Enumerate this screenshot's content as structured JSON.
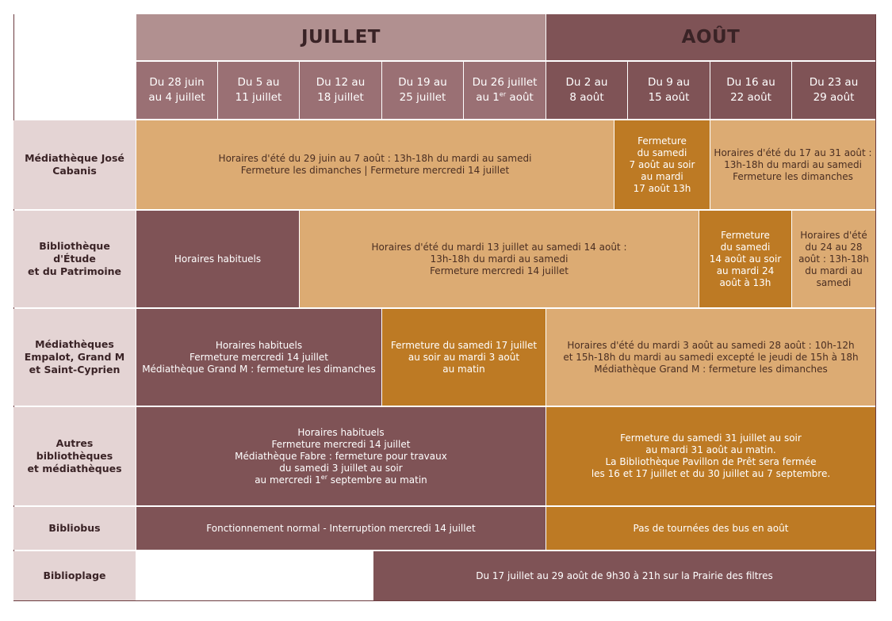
{
  "months": {
    "juillet": "JUILLET",
    "aout": "AOÛT"
  },
  "weeks": [
    "Du 28 juin\nau 4 juillet",
    "Du 5 au\n11 juillet",
    "Du 12 au\n18 juillet",
    "Du 19 au\n25 juillet",
    "Du 26 juillet\nau 1",
    "Du 2 au\n8 août",
    "Du 9 au\n15 août",
    "Du 16 au\n22 août",
    "Du 23 au\n29 août"
  ],
  "week5_sup": "er",
  "week5_end": " août",
  "rows": {
    "cabanis": {
      "label": "Médiathèque José\nCabanis",
      "c1": "Horaires d'été du 29 juin au 7 août : 13h-18h du mardi au samedi\nFermeture les dimanches | Fermeture mercredi 14 juillet",
      "c2": "Fermeture\ndu samedi\n7 août au soir\nau mardi\n17 août 13h",
      "c3": "Horaires d'été du 17 au 31 août :\n13h-18h du mardi au samedi\nFermeture les dimanches"
    },
    "patrimoine": {
      "label": "Bibliothèque d'Étude\net du Patrimoine",
      "c1": "Horaires habituels",
      "c2": "Horaires d'été du mardi 13 juillet au samedi 14 août :\n13h-18h du mardi au samedi\nFermeture mercredi 14 juillet",
      "c3": "Fermeture\ndu samedi\n14 août au soir\nau mardi 24\naoût à 13h",
      "c4": "Horaires d'été\ndu 24 au 28\naoût : 13h-18h\ndu mardi au\nsamedi"
    },
    "empalot": {
      "label": "Médiathèques\nEmpalot, Grand M\net Saint-Cyprien",
      "c1": "Horaires habituels\nFermeture mercredi 14 juillet\nMédiathèque Grand M : fermeture les dimanches",
      "c2": "Fermeture du samedi 17 juillet\nau soir au mardi 3 août\nau matin",
      "c3": "Horaires d'été du mardi 3 août au samedi 28 août : 10h-12h\net 15h-18h du mardi au samedi excepté le jeudi de 15h à 18h\nMédiathèque Grand M : fermeture les dimanches"
    },
    "autres": {
      "label": "Autres bibliothèques\net médiathèques",
      "c1a": "Horaires habituels\nFermeture mercredi 14 juillet\nMédiathèque Fabre : fermeture pour travaux\ndu samedi 3 juillet au soir\nau mercredi 1",
      "c1sup": "er",
      "c1b": " septembre au matin",
      "c2": "Fermeture du samedi 31 juillet au soir\nau mardi 31 août au matin.\nLa Bibliothèque Pavillon de Prêt sera fermée\nles 16 et 17 juillet et du 30 juillet au 7 septembre."
    },
    "bibliobus": {
      "label": "Bibliobus",
      "c1": "Fonctionnement normal - Interruption mercredi 14 juillet",
      "c2": "Pas de tournées des bus en août"
    },
    "biblioplage": {
      "label": "Biblioplage",
      "c1": "Du 17 juillet au 29 août de 9h30 à 21h sur la Prairie des filtres"
    }
  }
}
